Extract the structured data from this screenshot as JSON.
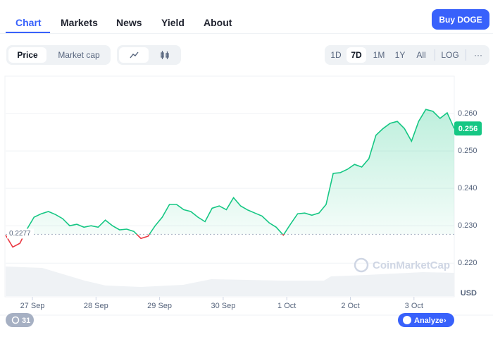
{
  "tabs": [
    "Chart",
    "Markets",
    "News",
    "Yield",
    "About"
  ],
  "buy_button": "Buy DOGE",
  "metric_toggle": [
    "Price",
    "Market cap"
  ],
  "ranges": [
    "1D",
    "7D",
    "1M",
    "1Y",
    "All"
  ],
  "log_button": "LOG",
  "more_button": "···",
  "watermark": "CoinMarketCap",
  "events_badge": "31",
  "analyze_button": "Analyze",
  "chart_data": {
    "type": "line",
    "y_axis_unit": "USD",
    "series": [
      {
        "name": "Price",
        "color": "#16c784",
        "below_color": "#ea3943",
        "values": [
          0.2275,
          0.2243,
          0.2253,
          0.2291,
          0.2323,
          0.2332,
          0.2338,
          0.233,
          0.2319,
          0.23,
          0.2304,
          0.2296,
          0.23,
          0.2296,
          0.2315,
          0.23,
          0.2289,
          0.2291,
          0.2285,
          0.2266,
          0.2272,
          0.23,
          0.2323,
          0.2357,
          0.2357,
          0.2343,
          0.2338,
          0.2323,
          0.2311,
          0.2347,
          0.2353,
          0.2343,
          0.2375,
          0.2353,
          0.2342,
          0.2334,
          0.2326,
          0.2308,
          0.2296,
          0.2275,
          0.2304,
          0.2332,
          0.2334,
          0.2328,
          0.2334,
          0.2357,
          0.244,
          0.2442,
          0.2451,
          0.2464,
          0.2457,
          0.2479,
          0.2542,
          0.256,
          0.2574,
          0.2579,
          0.256,
          0.2526,
          0.2579,
          0.2611,
          0.2606,
          0.2587,
          0.2602,
          0.256
        ]
      }
    ],
    "baseline": {
      "value": 0.2277,
      "label": "0.2277"
    },
    "current_price": {
      "value": 0.256,
      "label": "0.256"
    },
    "xticks": [
      "27 Sep",
      "28 Sep",
      "29 Sep",
      "30 Sep",
      "1 Oct",
      "2 Oct",
      "3 Oct"
    ],
    "ylim": [
      0.211,
      0.27
    ],
    "yticks": [
      {
        "value": 0.22,
        "label": "0.220"
      },
      {
        "value": 0.23,
        "label": "0.230"
      },
      {
        "value": 0.24,
        "label": "0.240"
      },
      {
        "value": 0.25,
        "label": "0.250"
      },
      {
        "value": 0.26,
        "label": "0.260"
      }
    ],
    "grid": true
  }
}
